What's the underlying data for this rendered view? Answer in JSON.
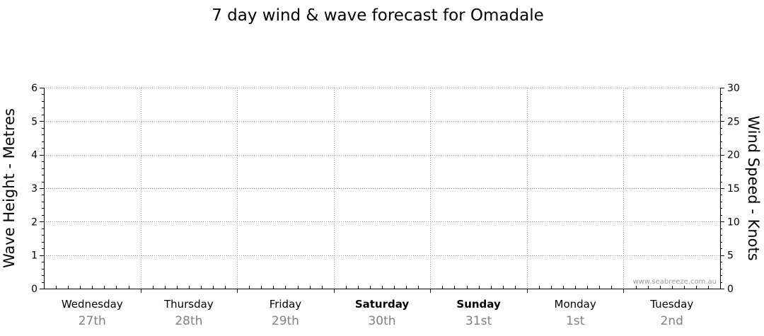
{
  "chart_data": {
    "type": "line",
    "title": "7 day wind & wave forecast for Omadale",
    "ylabel_left": "Wave Height - Metres",
    "ylabel_right": "Wind Speed - Knots",
    "ylim_left": [
      0,
      6
    ],
    "yticks_left": [
      0,
      1,
      2,
      3,
      4,
      5,
      6
    ],
    "ylim_right": [
      0,
      30
    ],
    "yticks_right": [
      0,
      5,
      10,
      15,
      20,
      25,
      30
    ],
    "grid": true,
    "watermark": "www.seabreeze.com.au",
    "days": [
      {
        "name": "Wednesday",
        "date": "27th",
        "bold": false
      },
      {
        "name": "Thursday",
        "date": "28th",
        "bold": false
      },
      {
        "name": "Friday",
        "date": "29th",
        "bold": false
      },
      {
        "name": "Saturday",
        "date": "30th",
        "bold": true
      },
      {
        "name": "Sunday",
        "date": "31st",
        "bold": true
      },
      {
        "name": "Monday",
        "date": "1st",
        "bold": false
      },
      {
        "name": "Tuesday",
        "date": "2nd",
        "bold": false
      }
    ],
    "series": []
  },
  "colors": {
    "axis": "#000000",
    "grid": "#9a9a9a",
    "date_text": "#808080",
    "watermark": "#9a9a9a"
  }
}
